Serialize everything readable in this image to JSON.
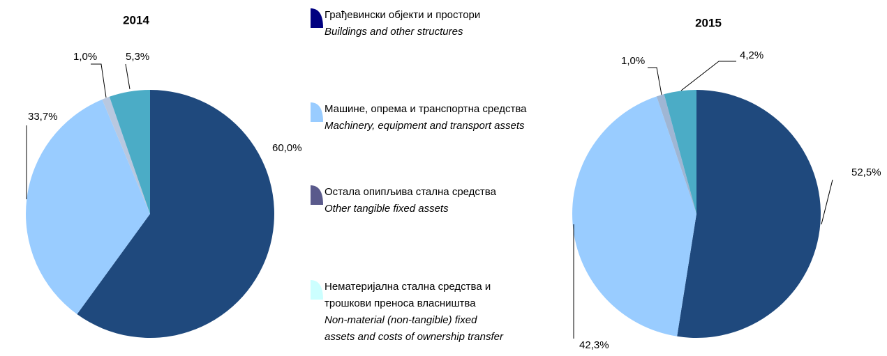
{
  "chart_data": [
    {
      "type": "pie",
      "title": "2014",
      "values": [
        60.0,
        33.7,
        1.0,
        5.3
      ],
      "value_labels": [
        "60,0%",
        "33,7%",
        "1,0%",
        "5,3%"
      ],
      "colors": [
        "#1f497d",
        "#99ccff",
        "#b8c8e0",
        "#4bacc6"
      ]
    },
    {
      "type": "pie",
      "title": "2015",
      "values": [
        52.5,
        42.3,
        1.0,
        4.2
      ],
      "value_labels": [
        "52,5%",
        "42,3%",
        "1,0%",
        "4,2%"
      ],
      "colors": [
        "#1f497d",
        "#99ccff",
        "#9fb6d4",
        "#4bacc6"
      ]
    }
  ],
  "legend": {
    "items": [
      {
        "color": "#000080",
        "lines": [
          "Грађевински објекти и простори"
        ],
        "italic_lines": [
          "Buildings and other structures"
        ]
      },
      {
        "color": "#99ccff",
        "lines": [
          "Машине, опрема и транспортна средства"
        ],
        "italic_lines": [
          "Machinery, equipment and transport assets"
        ]
      },
      {
        "color": "#5a5a8c",
        "lines": [
          "Остала опипљива стална средства"
        ],
        "italic_lines": [
          "Other tangible fixed assets"
        ]
      },
      {
        "color": "#ccffff",
        "lines": [
          "Нематеријална стална средства и",
          "трошкови преноса власништва"
        ],
        "italic_lines": [
          "Non-material (non-tangible) fixed",
          "assets and costs of ownership transfer"
        ]
      }
    ]
  }
}
